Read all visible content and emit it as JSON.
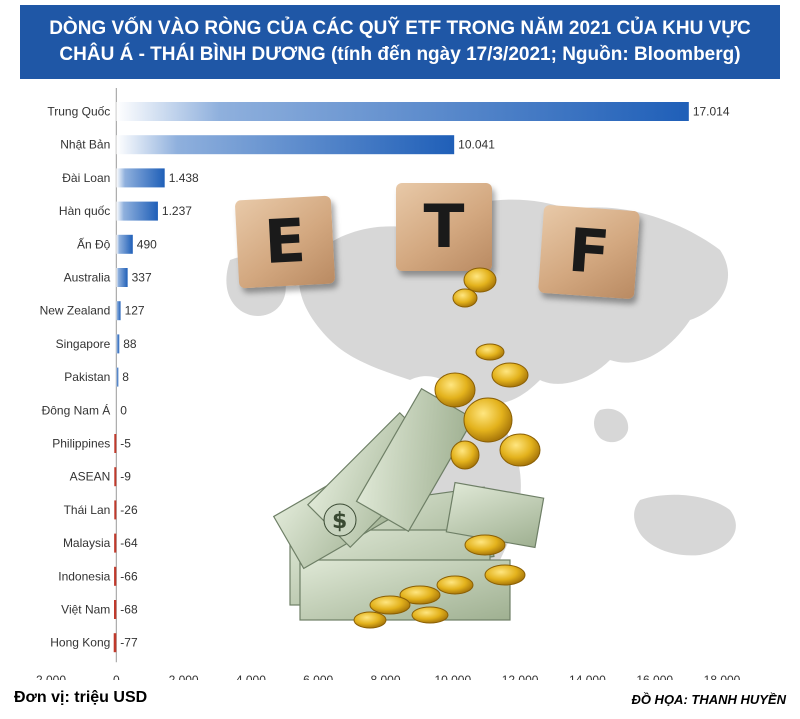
{
  "title": {
    "line1": "DÒNG VỐN VÀO RÒNG CỦA CÁC QUỸ ETF TRONG NĂM 2021 CỦA KHU VỰC",
    "line2": "CHÂU Á - THÁI BÌNH DƯƠNG (tính đến ngày 17/3/2021; Nguồn: Bloomberg)"
  },
  "footer": {
    "unit": "Đơn vị: triệu USD",
    "credit": "ĐỒ HỌA: THANH HUYỀN"
  },
  "cubes": {
    "letters": [
      "E",
      "T",
      "F"
    ]
  },
  "colors": {
    "banner": "#1f57a6",
    "positive_bar": "#1f5fb8",
    "negative_bar": "#c0392b"
  },
  "chart_data": {
    "type": "bar",
    "orientation": "horizontal",
    "categories": [
      "Trung Quốc",
      "Nhật Bản",
      "Đài Loan",
      "Hàn quốc",
      "Ấn Độ",
      "Australia",
      "New Zealand",
      "Singapore",
      "Pakistan",
      "Đông Nam Á",
      "Philippines",
      "ASEAN",
      "Thái Lan",
      "Malaysia",
      "Indonesia",
      "Việt Nam",
      "Hong Kong"
    ],
    "values": [
      17014,
      10041,
      1438,
      1237,
      490,
      337,
      127,
      88,
      8,
      0,
      -5,
      -9,
      -26,
      -64,
      -66,
      -68,
      -77
    ],
    "value_labels": [
      "17.014",
      "10.041",
      "1.438",
      "1.237",
      "490",
      "337",
      "127",
      "88",
      "8",
      "0",
      "-5",
      "-9",
      "-26",
      "-64",
      "-66",
      "-68",
      "-77"
    ],
    "xlim": [
      -2000,
      18000
    ],
    "xticks": [
      -2000,
      0,
      2000,
      4000,
      6000,
      8000,
      10000,
      12000,
      14000,
      16000,
      18000
    ],
    "xtick_labels": [
      "-2.000",
      "0",
      "2.000",
      "4.000",
      "6.000",
      "8.000",
      "10.000",
      "12.000",
      "14.000",
      "16.000",
      "18.000"
    ],
    "grid": false,
    "legend": "none"
  }
}
